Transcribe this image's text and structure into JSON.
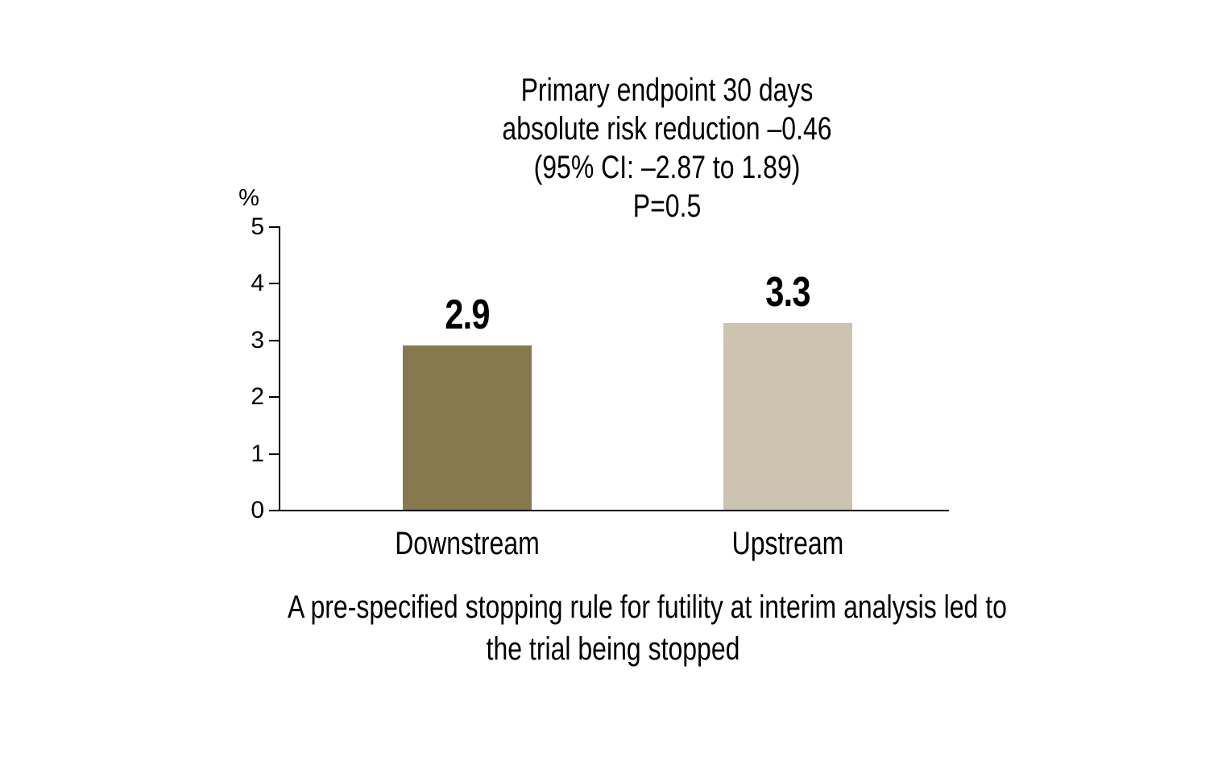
{
  "chart_data": {
    "type": "bar",
    "title_lines": [
      "Primary endpoint 30 days",
      "absolute risk reduction –0.46",
      "(95% CI: –2.87 to 1.89)",
      "P=0.5"
    ],
    "categories": [
      "Downstream",
      "Upstream"
    ],
    "values": [
      2.9,
      3.3
    ],
    "value_labels": [
      "2.9",
      "3.3"
    ],
    "bar_colors": [
      "#86794e",
      "#ccc4b1"
    ],
    "ylabel": "%",
    "ylim": [
      0,
      5
    ],
    "yticks": [
      0,
      1,
      2,
      3,
      4,
      5
    ],
    "grid": false,
    "legend_position": "none",
    "axis_color": "#000000",
    "text_color": "#000000",
    "background_color": "#ffffff",
    "caption_lines": [
      "A pre-specified stopping rule for futility at interim analysis led to",
      "the trial being stopped"
    ]
  }
}
